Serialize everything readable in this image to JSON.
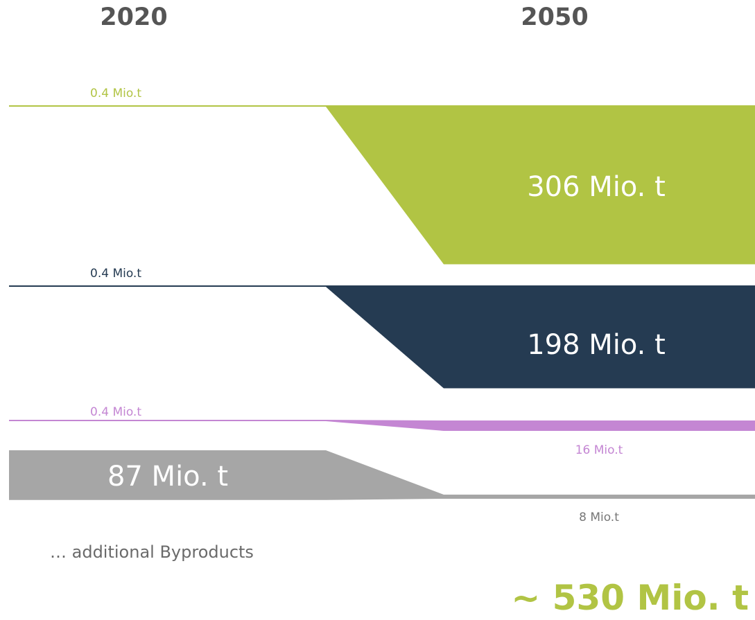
{
  "chart_data": {
    "type": "area",
    "years": [
      "2020",
      "2050"
    ],
    "unit": "Mio.t",
    "series": [
      {
        "key": "green",
        "value_2020": 0.4,
        "value_2050": 306,
        "label_2020": "0.4 Mio.t",
        "label_2050": "306 Mio. t",
        "color": "#B1C444"
      },
      {
        "key": "navy",
        "value_2020": 0.4,
        "value_2050": 198,
        "label_2020": "0.4 Mio.t",
        "label_2050": "198 Mio. t",
        "color": "#253B52"
      },
      {
        "key": "purple",
        "value_2020": 0.4,
        "value_2050": 16,
        "label_2020": "0.4 Mio.t",
        "label_2050": "16 Mio.t",
        "color": "#C486D3"
      },
      {
        "key": "gray",
        "value_2020": 87,
        "value_2050": 8,
        "label_2020": "87 Mio. t",
        "label_2050": "8 Mio.t",
        "color": "#A6A6A6"
      }
    ],
    "note": "… additional Byproducts",
    "total_label": "~ 530 Mio. t",
    "total_color": "#B1C444"
  }
}
